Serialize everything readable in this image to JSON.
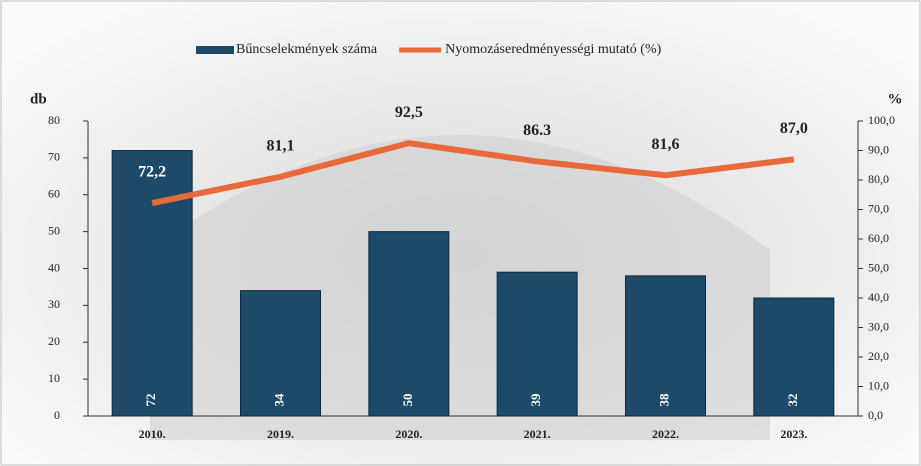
{
  "chart_data": {
    "type": "bar",
    "categories": [
      "2010.",
      "2019.",
      "2020.",
      "2021.",
      "2022.",
      "2023."
    ],
    "series": [
      {
        "name": "Bűncselekmények száma",
        "color": "#1d4a69",
        "type": "bar",
        "values": [
          72,
          34,
          50,
          39,
          38,
          32
        ]
      },
      {
        "name": "Nyomozáseredményességi mutató (%)",
        "color": "#e9693b",
        "type": "line",
        "axis": "y2",
        "values": [
          72.2,
          81.1,
          92.5,
          86.3,
          81.6,
          87.0
        ],
        "value_labels": [
          "72,2",
          "81,1",
          "92,5",
          "86.3",
          "81,6",
          "87,0"
        ]
      }
    ],
    "ylabel": "db",
    "y2label": "%",
    "ylim": [
      0,
      80
    ],
    "yticks": [
      0,
      10,
      20,
      30,
      40,
      50,
      60,
      70,
      80
    ],
    "y2lim": [
      0,
      100
    ],
    "y2ticks": [
      {
        "value": 0,
        "label": "0,0"
      },
      {
        "value": 10,
        "label": "10,0"
      },
      {
        "value": 20,
        "label": "20,0"
      },
      {
        "value": 30,
        "label": "30,0"
      },
      {
        "value": 40,
        "label": "40,0"
      },
      {
        "value": 50,
        "label": "50,0"
      },
      {
        "value": 60,
        "label": "60,0"
      },
      {
        "value": 70,
        "label": "70,0"
      },
      {
        "value": 80,
        "label": "80,0"
      },
      {
        "value": 90,
        "label": "90,0"
      },
      {
        "value": 100,
        "label": "100,0"
      }
    ]
  }
}
